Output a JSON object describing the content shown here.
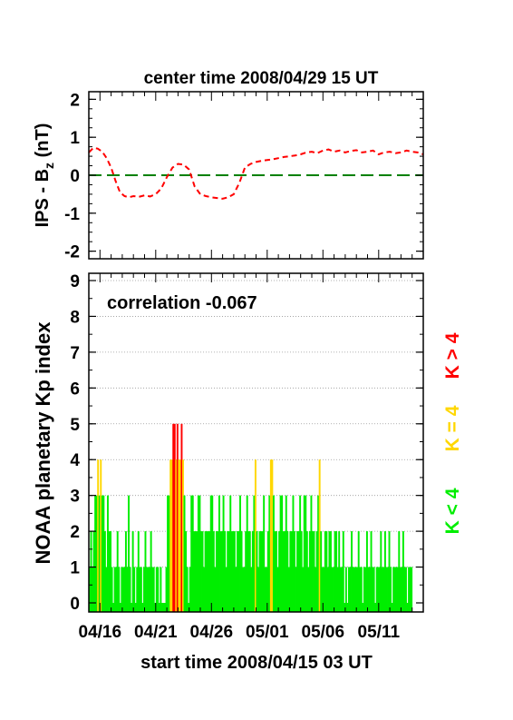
{
  "chart_data": [
    {
      "type": "line",
      "title": "center time 2008/04/29 15 UT",
      "ylabel_main": "IPS - B",
      "ylabel_sub": "z",
      "ylabel_unit": " (nT)",
      "ylim": [
        -2.2,
        2.2
      ],
      "yticks": [
        -2,
        -1,
        0,
        1,
        2
      ],
      "xlim": [
        0,
        30
      ],
      "colors": {
        "series": "#ff0000",
        "zero_line": "#008000"
      },
      "series": [
        {
          "x": [
            0,
            0.4,
            0.8,
            1.2,
            1.6,
            2.0,
            2.4,
            2.8,
            3.2,
            3.6,
            4.0,
            4.5,
            5.0,
            5.5,
            6.0,
            6.5,
            7.0,
            7.5,
            8.0,
            8.5,
            9.0,
            9.5,
            10.0,
            10.5,
            11.0,
            11.5,
            12.0,
            12.5,
            13.0,
            13.5,
            14.0,
            14.5,
            15.0,
            15.5,
            16.0,
            16.5,
            17.0,
            17.5,
            18.0,
            18.5,
            19.0,
            19.5,
            20.0,
            20.5,
            21.0,
            21.5,
            22.0,
            22.5,
            23.0,
            23.5,
            24.0,
            24.5,
            25.0,
            25.5,
            26.0,
            26.5,
            27.0,
            27.5,
            28.0,
            28.5,
            29.0,
            29.5,
            30.0
          ],
          "values": [
            0.6,
            0.72,
            0.7,
            0.62,
            0.45,
            0.2,
            -0.15,
            -0.45,
            -0.55,
            -0.58,
            -0.55,
            -0.57,
            -0.53,
            -0.56,
            -0.5,
            -0.35,
            -0.05,
            0.2,
            0.3,
            0.28,
            0.15,
            -0.3,
            -0.5,
            -0.55,
            -0.58,
            -0.6,
            -0.62,
            -0.58,
            -0.5,
            -0.2,
            0.2,
            0.3,
            0.35,
            0.38,
            0.4,
            0.42,
            0.45,
            0.48,
            0.5,
            0.52,
            0.55,
            0.6,
            0.62,
            0.58,
            0.65,
            0.68,
            0.62,
            0.65,
            0.6,
            0.64,
            0.66,
            0.6,
            0.62,
            0.65,
            0.55,
            0.6,
            0.62,
            0.58,
            0.6,
            0.65,
            0.62,
            0.6,
            0.55
          ]
        }
      ]
    },
    {
      "type": "bar",
      "annotation": "correlation -0.067",
      "ylabel": "NOAA planetary Kp index",
      "xlabel": "start time 2008/04/15 03 UT",
      "ylim": [
        0,
        9
      ],
      "yticks": [
        0,
        1,
        2,
        3,
        4,
        5,
        6,
        7,
        8,
        9
      ],
      "xlim": [
        0,
        30
      ],
      "xtick_labels": [
        "04/16",
        "04/21",
        "04/26",
        "05/01",
        "05/06",
        "05/11"
      ],
      "xtick_positions_days": [
        1,
        6,
        11,
        16,
        21,
        26
      ],
      "bins_per_day": 8,
      "grid": "horizontal dotted",
      "legend": [
        {
          "label": "K < 4",
          "color": "#00ee00"
        },
        {
          "label": "K = 4",
          "color": "#ffd700"
        },
        {
          "label": "K > 4",
          "color": "#ff0000"
        }
      ],
      "values": [
        1,
        2,
        1,
        2,
        3,
        3,
        4,
        3,
        4,
        3,
        3,
        2,
        1,
        3,
        2,
        2,
        1,
        0,
        1,
        1,
        2,
        1,
        0,
        1,
        1,
        1,
        2,
        1,
        3,
        1,
        0,
        2,
        1,
        0,
        1,
        2,
        1,
        1,
        0,
        1,
        2,
        1,
        1,
        1,
        2,
        1,
        1,
        0,
        1,
        1,
        0,
        1,
        0,
        0,
        0,
        1,
        3,
        3,
        4,
        4,
        5,
        5,
        4,
        5,
        4,
        4,
        5,
        4,
        3,
        2,
        1,
        0,
        1,
        3,
        3,
        2,
        2,
        2,
        3,
        3,
        2,
        2,
        1,
        2,
        2,
        2,
        2,
        3,
        3,
        2,
        1,
        2,
        2,
        3,
        2,
        2,
        3,
        2,
        1,
        2,
        2,
        3,
        2,
        2,
        2,
        1,
        2,
        2,
        3,
        2,
        1,
        1,
        2,
        3,
        2,
        2,
        1,
        2,
        3,
        4,
        2,
        1,
        2,
        2,
        2,
        3,
        1,
        1,
        2,
        3,
        4,
        4,
        3,
        2,
        2,
        1,
        2,
        3,
        3,
        2,
        2,
        3,
        2,
        1,
        2,
        2,
        3,
        2,
        1,
        2,
        2,
        3,
        2,
        1,
        3,
        3,
        2,
        1,
        2,
        3,
        2,
        2,
        1,
        2,
        3,
        4,
        2,
        1,
        1,
        2,
        2,
        1,
        2,
        2,
        1,
        1,
        2,
        2,
        1,
        2,
        1,
        1,
        2,
        0,
        1,
        0,
        1,
        1,
        2,
        1,
        1,
        1,
        1,
        2,
        1,
        1,
        0,
        1,
        1,
        2,
        1,
        1,
        2,
        1,
        1,
        0,
        1,
        1,
        1,
        2,
        1,
        1,
        2,
        1,
        1,
        2,
        1,
        0,
        1,
        1,
        1,
        1,
        2,
        1,
        1,
        2,
        1,
        1,
        0,
        1,
        1,
        1
      ]
    }
  ]
}
